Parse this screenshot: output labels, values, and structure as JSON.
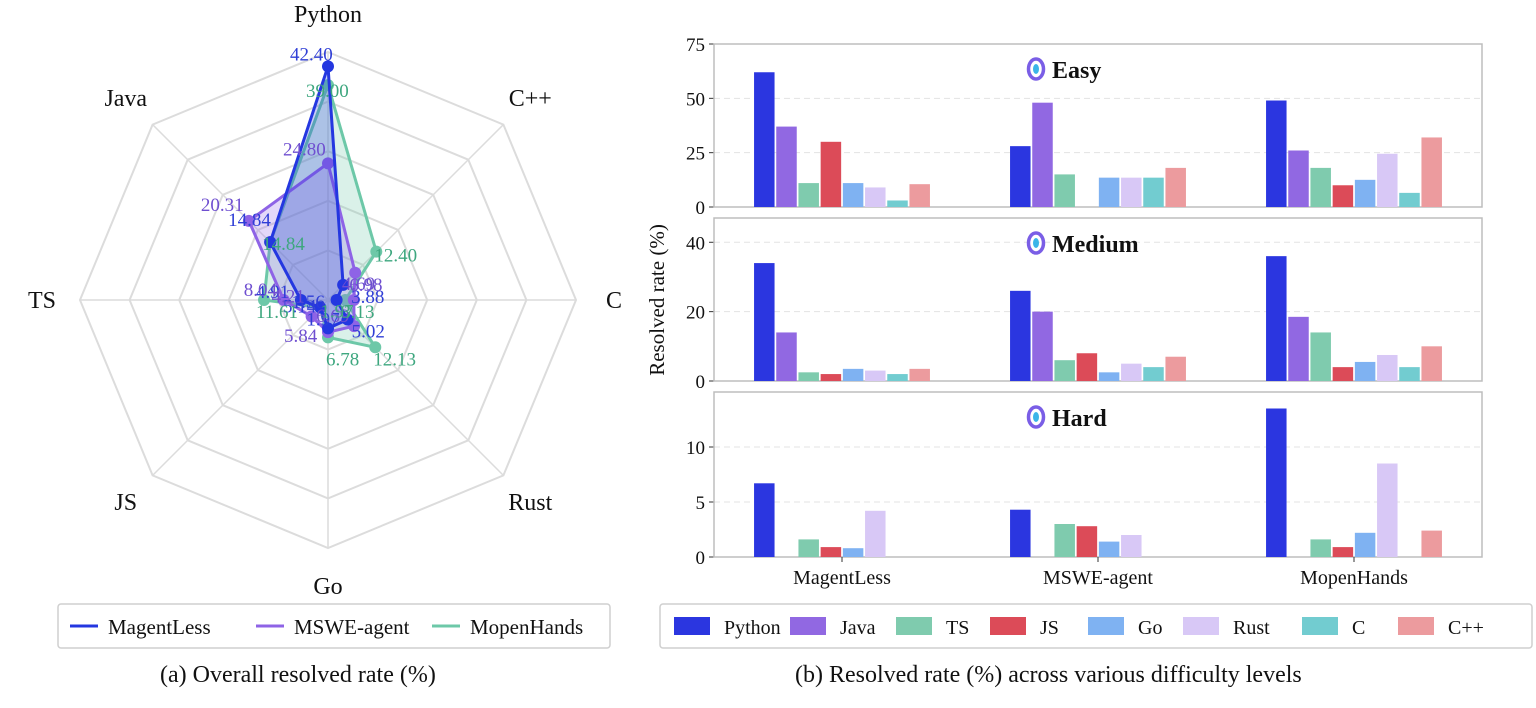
{
  "chart_data": [
    {
      "type": "radar",
      "caption": "(a) Overall resolved rate (%)",
      "axes": [
        "Python",
        "C++",
        "C",
        "Rust",
        "Go",
        "JS",
        "TS",
        "Java"
      ],
      "rmax": 45,
      "grid": true,
      "legend_position": "bottom",
      "series": [
        {
          "name": "MagentLess",
          "color": "#2437e0",
          "values": [
            42.4,
            3.88,
            1.56,
            5.02,
            5.14,
            1.97,
            4.91,
            14.84
          ],
          "labels": [
            "42.40",
            "3.88",
            "1.56",
            "5.02",
            "5.14",
            "1.97",
            "4.91",
            "14.84"
          ]
        },
        {
          "name": "MSWE-agent",
          "color": "#8e63e6",
          "values": [
            24.8,
            6.98,
            4.69,
            6.69,
            5.84,
            4.21,
            8.04,
            20.31
          ],
          "labels": [
            "24.80",
            "6.98",
            "4.69",
            "6.69",
            "5.84",
            "4.21",
            "8.04",
            "20.31"
          ]
        },
        {
          "name": "MopenHands",
          "color": "#6dc8a8",
          "values": [
            39.0,
            12.4,
            3.13,
            12.13,
            6.78,
            1.97,
            11.61,
            14.84
          ],
          "labels": [
            "39.00",
            "12.40",
            "3.13",
            "12.13",
            "6.78",
            "1.97",
            "11.61",
            "14.84"
          ]
        }
      ]
    },
    {
      "type": "bar",
      "caption": "(b) Resolved rate (%) across various difficulty levels",
      "ylabel": "Resolved rate (%)",
      "categories": [
        "MagentLess",
        "MSWE-agent",
        "MopenHands"
      ],
      "legend_position": "bottom",
      "languages": [
        {
          "name": "Python",
          "color": "#2b36e0"
        },
        {
          "name": "Java",
          "color": "#9168e2"
        },
        {
          "name": "TS",
          "color": "#7fcbae"
        },
        {
          "name": "JS",
          "color": "#dc4b58"
        },
        {
          "name": "Go",
          "color": "#7fb2f2"
        },
        {
          "name": "Rust",
          "color": "#d8c8f6"
        },
        {
          "name": "C",
          "color": "#72ccd0"
        },
        {
          "name": "C++",
          "color": "#ec9b9e"
        }
      ],
      "panels": [
        {
          "title": "Easy",
          "ylim": [
            0,
            75
          ],
          "yticks": [
            0,
            25,
            50,
            75
          ],
          "values": [
            [
              62,
              37,
              11,
              30,
              11,
              9,
              3,
              10.5
            ],
            [
              28,
              48,
              15,
              0,
              13.5,
              13.5,
              13.5,
              18
            ],
            [
              49,
              26,
              18,
              10,
              12.5,
              24.5,
              6.5,
              32
            ]
          ]
        },
        {
          "title": "Medium",
          "ylim": [
            0,
            47
          ],
          "yticks": [
            0,
            20,
            40
          ],
          "values": [
            [
              34,
              14,
              2.5,
              2,
              3.5,
              3,
              2,
              3.5
            ],
            [
              26,
              20,
              6,
              8,
              2.5,
              5,
              4,
              7
            ],
            [
              36,
              18.5,
              14,
              4,
              5.5,
              7.5,
              4,
              10
            ]
          ]
        },
        {
          "title": "Hard",
          "ylim": [
            0,
            15
          ],
          "yticks": [
            0,
            5,
            10
          ],
          "values": [
            [
              6.7,
              0,
              1.6,
              0.9,
              0.8,
              4.2,
              0,
              0
            ],
            [
              4.3,
              0,
              3.0,
              2.8,
              1.4,
              2.0,
              0,
              0
            ],
            [
              13.5,
              0,
              1.6,
              0.9,
              2.2,
              8.5,
              0,
              2.4
            ]
          ]
        }
      ]
    }
  ]
}
